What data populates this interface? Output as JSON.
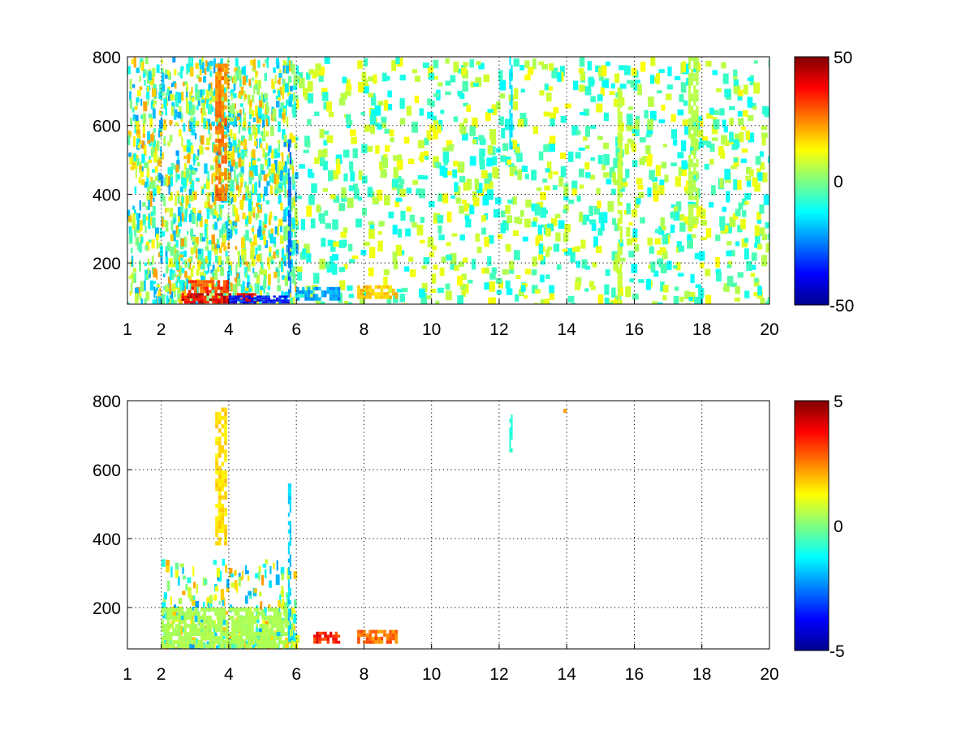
{
  "colormap": "jet",
  "chart_data": [
    {
      "type": "heatmap",
      "panel": "top",
      "title": "",
      "xlabel": "",
      "ylabel": "",
      "xlim": [
        1,
        20
      ],
      "ylim": [
        80,
        800
      ],
      "grid": true,
      "x_ticks": [
        1,
        2,
        4,
        6,
        8,
        10,
        12,
        14,
        16,
        18,
        20
      ],
      "y_ticks": [
        200,
        400,
        600,
        800
      ],
      "colorbar": {
        "min": -50,
        "max": 50,
        "ticks": [
          50,
          0,
          -50
        ],
        "tick_labels": [
          "50",
          "0",
          "-50"
        ]
      },
      "features": [
        {
          "x0": 2.6,
          "x1": 4.9,
          "y0": 82,
          "y1": 112,
          "value": 45
        },
        {
          "x0": 4.0,
          "x1": 5.8,
          "y0": 82,
          "y1": 105,
          "value": -40
        },
        {
          "x0": 2.8,
          "x1": 4.0,
          "y0": 112,
          "y1": 150,
          "value": 35
        },
        {
          "x0": 3.6,
          "x1": 3.95,
          "y0": 380,
          "y1": 780,
          "value": 28
        },
        {
          "x0": 5.75,
          "x1": 5.85,
          "y0": 100,
          "y1": 560,
          "value": -30
        },
        {
          "x0": 6.0,
          "x1": 7.3,
          "y0": 90,
          "y1": 130,
          "value": -25
        },
        {
          "x0": 7.8,
          "x1": 9.0,
          "y0": 95,
          "y1": 135,
          "value": 20
        },
        {
          "x0": 12.3,
          "x1": 12.4,
          "y0": 530,
          "y1": 800,
          "value": -18
        },
        {
          "x0": 15.5,
          "x1": 15.65,
          "y0": 80,
          "y1": 700,
          "value": 8
        },
        {
          "x0": 17.6,
          "x1": 17.9,
          "y0": 300,
          "y1": 800,
          "value": 6
        }
      ]
    },
    {
      "type": "heatmap",
      "panel": "bottom",
      "title": "",
      "xlabel": "",
      "ylabel": "",
      "xlim": [
        1,
        20
      ],
      "ylim": [
        80,
        800
      ],
      "grid": true,
      "x_ticks": [
        1,
        2,
        4,
        6,
        8,
        10,
        12,
        14,
        16,
        18,
        20
      ],
      "y_ticks": [
        200,
        400,
        600,
        800
      ],
      "colorbar": {
        "min": -5,
        "max": 5,
        "ticks": [
          5,
          0,
          -5
        ],
        "tick_labels": [
          "5",
          "0",
          "-5"
        ]
      },
      "features": [
        {
          "x0": 2.0,
          "x1": 5.9,
          "y0": 82,
          "y1": 200,
          "value": 0.5
        },
        {
          "x0": 3.6,
          "x1": 3.95,
          "y0": 380,
          "y1": 780,
          "value": 1.8
        },
        {
          "x0": 5.75,
          "x1": 5.85,
          "y0": 100,
          "y1": 560,
          "value": -2.0
        },
        {
          "x0": 6.5,
          "x1": 7.3,
          "y0": 95,
          "y1": 130,
          "value": 4.0
        },
        {
          "x0": 7.8,
          "x1": 9.0,
          "y0": 95,
          "y1": 135,
          "value": 3.0
        },
        {
          "x0": 12.3,
          "x1": 12.4,
          "y0": 650,
          "y1": 760,
          "value": -1.0
        },
        {
          "x0": 13.9,
          "x1": 14.0,
          "y0": 765,
          "y1": 780,
          "value": 2.5
        }
      ]
    }
  ]
}
